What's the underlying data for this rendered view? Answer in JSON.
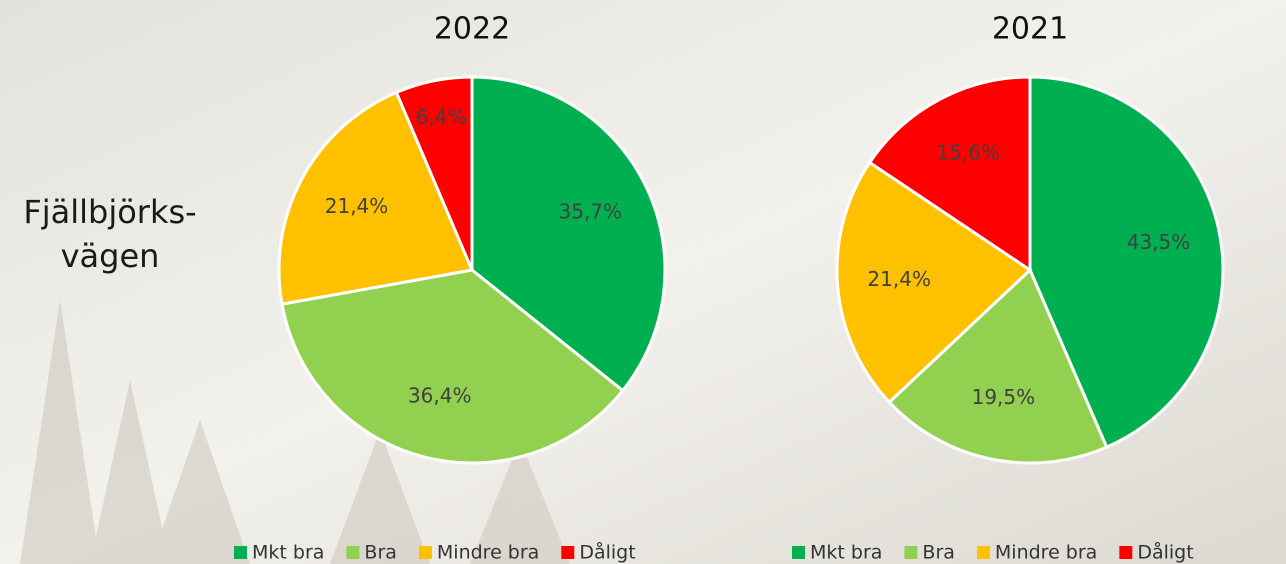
{
  "side_label": [
    "Fjällbjörks-",
    "vägen"
  ],
  "chart_data": [
    {
      "type": "pie",
      "title": "2022",
      "categories": [
        "Mkt bra",
        "Bra",
        "Mindre bra",
        "Dåligt"
      ],
      "values": [
        35.7,
        36.4,
        21.4,
        6.4
      ],
      "value_labels": [
        "35,7%",
        "36,4%",
        "21,4%",
        "6,4%"
      ],
      "colors": [
        "#00b050",
        "#92d050",
        "#ffc000",
        "#ff0000"
      ],
      "legend": "bottom"
    },
    {
      "type": "pie",
      "title": "2021",
      "categories": [
        "Mkt bra",
        "Bra",
        "Mindre bra",
        "Dåligt"
      ],
      "values": [
        43.5,
        19.5,
        21.4,
        15.6
      ],
      "value_labels": [
        "43,5%",
        "19,5%",
        "21,4%",
        "15,6%"
      ],
      "colors": [
        "#00b050",
        "#92d050",
        "#ffc000",
        "#ff0000"
      ],
      "legend": "bottom"
    }
  ]
}
